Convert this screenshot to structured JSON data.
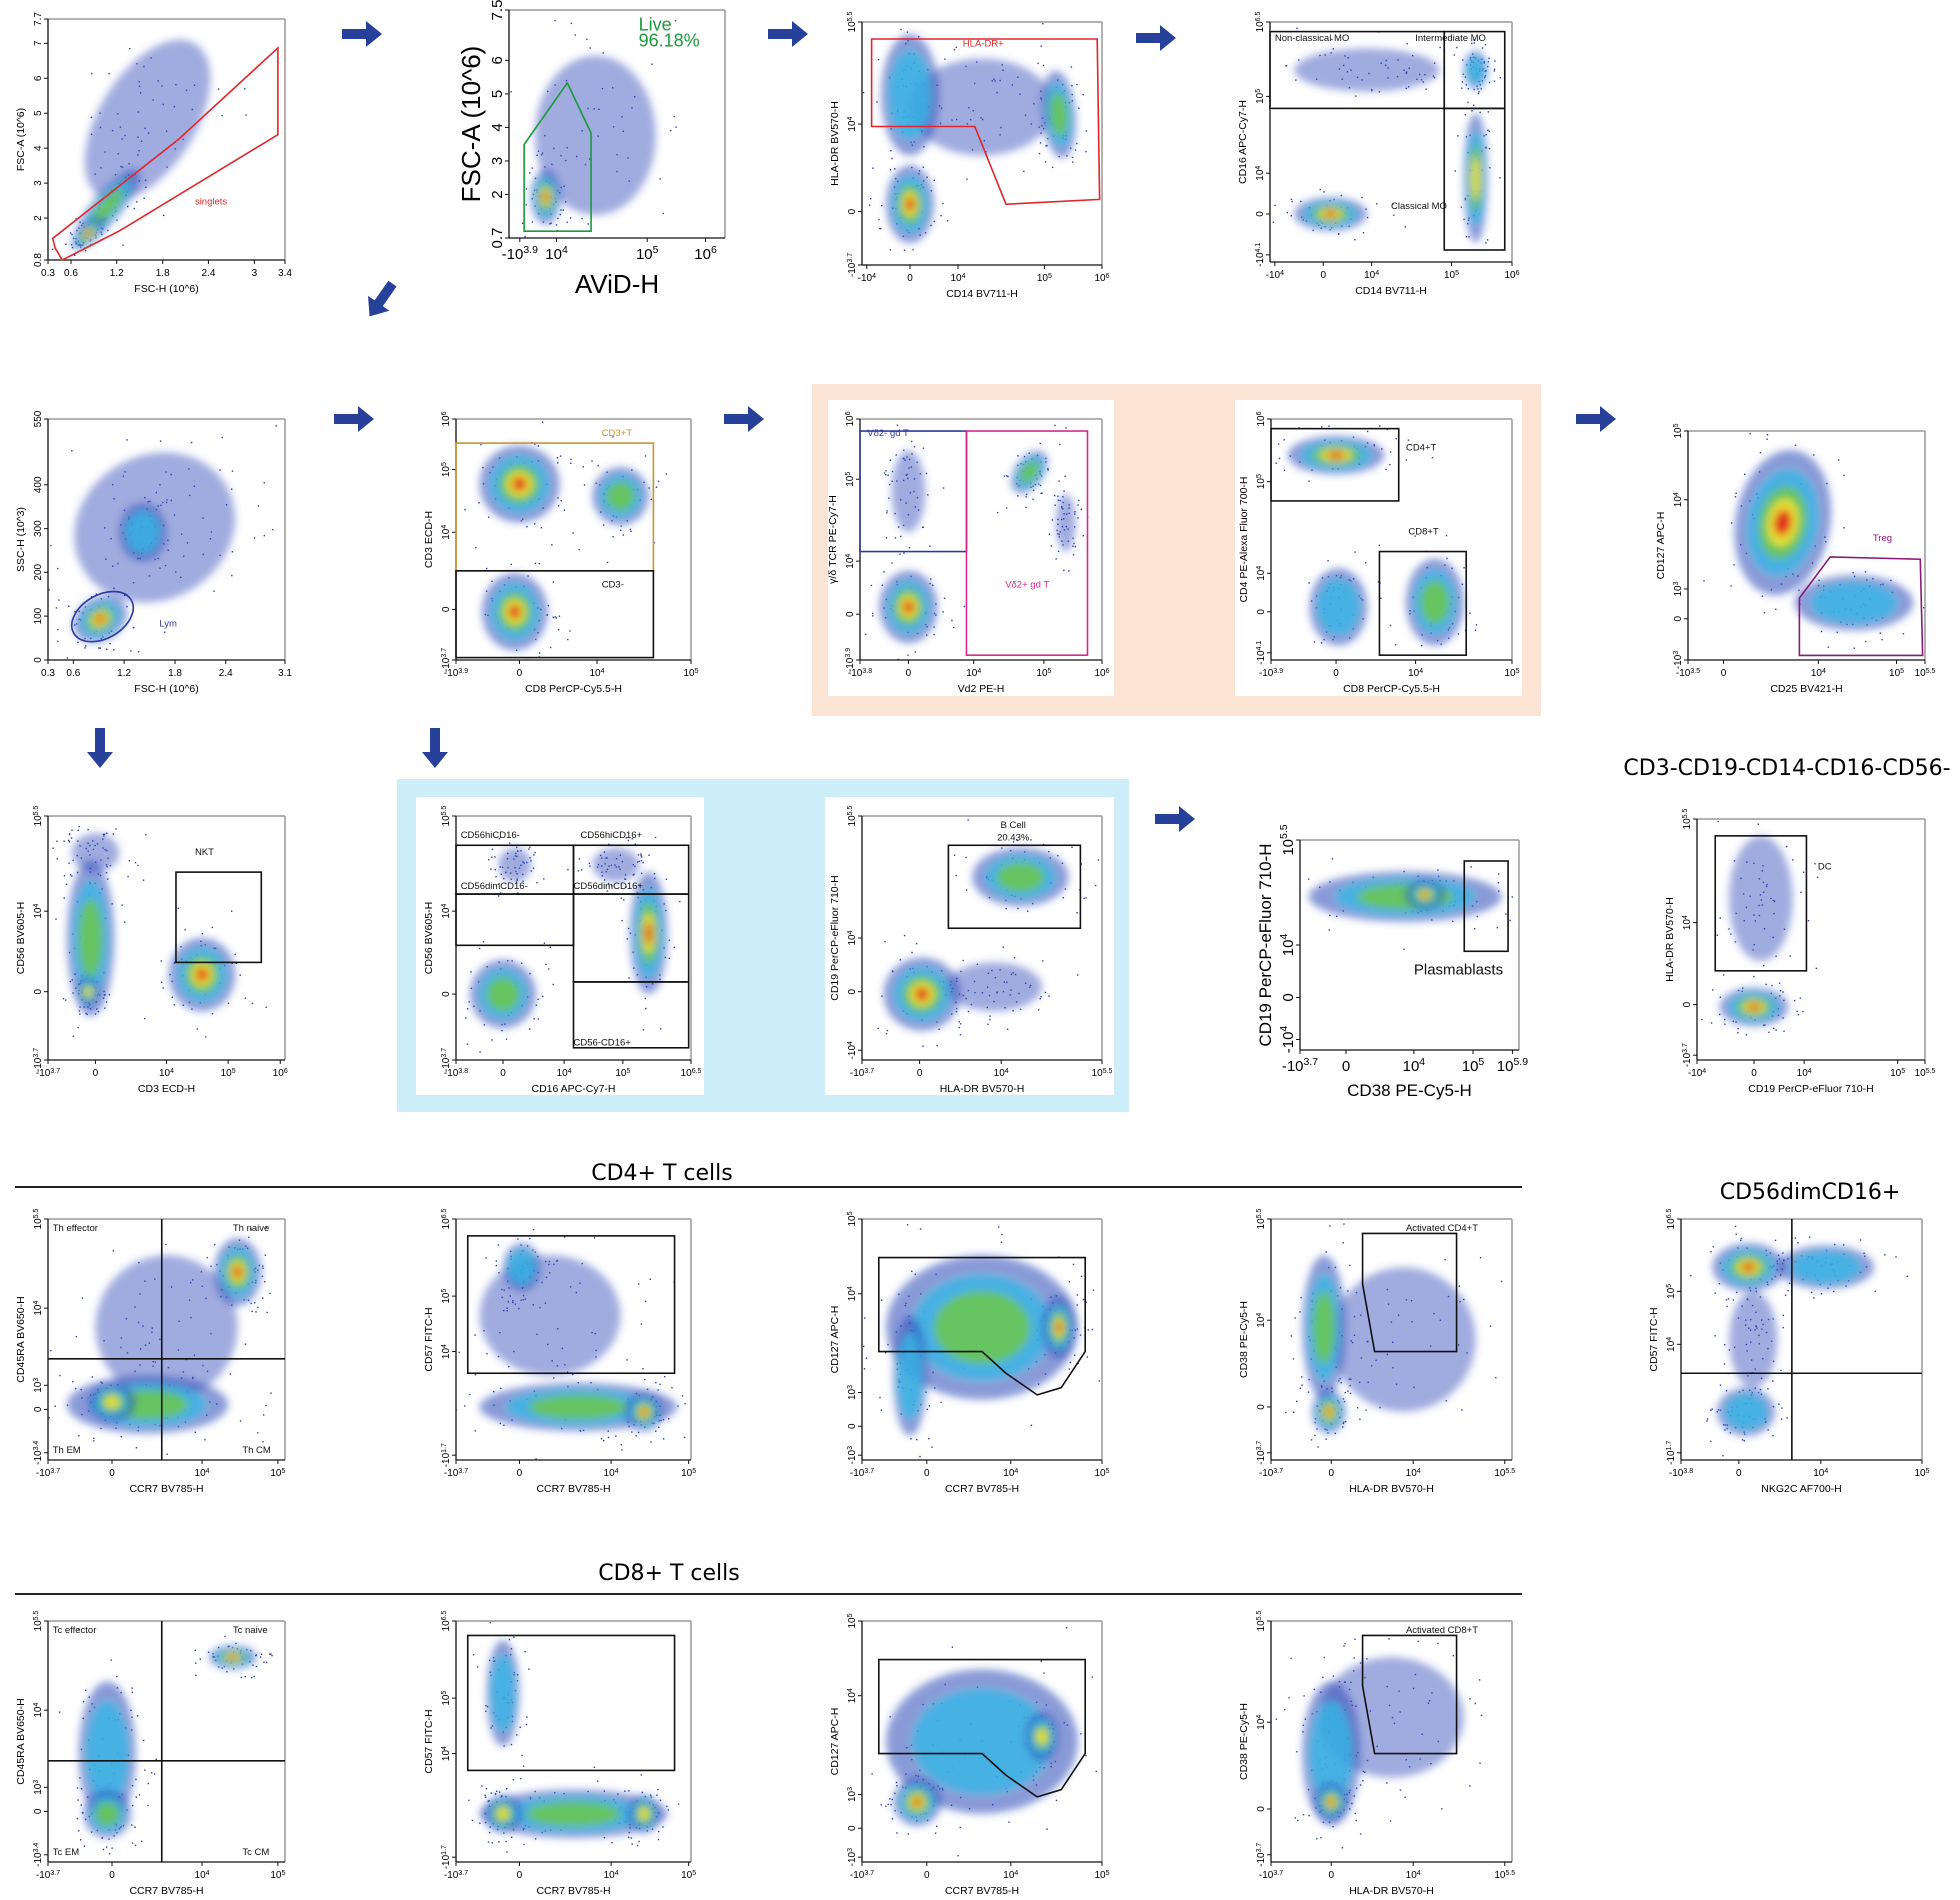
{
  "colors": {
    "arrow": "#27409a",
    "peach_panel": "#fbe4d3",
    "blue_panel": "#cdeef9",
    "gate_red": "#e0262a",
    "gate_green": "#1a9a3a",
    "gate_gold": "#c8962a",
    "gate_blue": "#2a3aa0",
    "gate_magenta": "#d62a8a",
    "gate_purple": "#8a1a7a",
    "gate_black": "#111111"
  },
  "sections": {
    "cd4_title": "CD4+ T cells",
    "cd8_title": "CD8+ T cells",
    "nk_title": "CD56dimCD16+",
    "dc_title": "CD3-CD19-CD14-CD16-CD56-"
  },
  "chart_data": [
    {
      "type": "scatter",
      "xlabel": "FSC-H (10^6)",
      "ylabel": "FSC-A (10^6)",
      "xticks": [
        "0.3",
        "0.6",
        "1.2",
        "1.8",
        "2.4",
        "3",
        "3.4"
      ],
      "yticks": [
        "0.8",
        "2",
        "3",
        "4",
        "5",
        "6",
        "7",
        "7.7"
      ],
      "gates": [
        {
          "label": "singlets",
          "color": "#e0262a"
        }
      ]
    },
    {
      "type": "scatter",
      "xlabel": "AViD-H",
      "ylabel": "FSC-A (10^6)",
      "xticks": [
        "-10^3.9",
        "10^4",
        "10^5",
        "10^6"
      ],
      "yticks": [
        "0.7",
        "2",
        "3",
        "4",
        "5",
        "6",
        "7.5"
      ],
      "gates": [
        {
          "label": "Live",
          "value": "96.18%",
          "color": "#1a9a3a"
        }
      ]
    },
    {
      "type": "scatter",
      "xlabel": "CD14 BV711-H",
      "ylabel": "HLA-DR BV570-H",
      "xticks": [
        "-10^4",
        "0",
        "10^4",
        "10^5",
        "10^6"
      ],
      "yticks": [
        "-10^3.7",
        "0",
        "10^4",
        "10^5.5"
      ],
      "gates": [
        {
          "label": "HLA-DR+",
          "color": "#e0262a"
        }
      ]
    },
    {
      "type": "scatter",
      "xlabel": "CD14 BV711-H",
      "ylabel": "CD16 APC-Cy7-H",
      "xticks": [
        "-10^4",
        "0",
        "10^4",
        "10^5",
        "10^6"
      ],
      "yticks": [
        "-10^4.1",
        "0",
        "10^4",
        "10^5",
        "10^6.5"
      ],
      "gates": [
        {
          "label": "Non-classical MO",
          "color": "#111111"
        },
        {
          "label": "Intermediate MO",
          "color": "#111111"
        },
        {
          "label": "Classical MO",
          "color": "#111111"
        }
      ]
    },
    {
      "type": "scatter",
      "xlabel": "FSC-H (10^6)",
      "ylabel": "SSC-H (10^3)",
      "xticks": [
        "0.3",
        "0.6",
        "1.2",
        "1.8",
        "2.4",
        "3.1"
      ],
      "yticks": [
        "0",
        "100",
        "200",
        "300",
        "400",
        "550"
      ],
      "gates": [
        {
          "label": "Lym",
          "color": "#2a3aa0"
        }
      ]
    },
    {
      "type": "scatter",
      "xlabel": "CD8 PerCP-Cy5.5-H",
      "ylabel": "CD3 ECD-H",
      "xticks": [
        "-10^3.9",
        "0",
        "10^4",
        "10^5"
      ],
      "yticks": [
        "-10^3.7",
        "0",
        "10^4",
        "10^5",
        "10^6"
      ],
      "gates": [
        {
          "label": "CD3+T",
          "color": "#c8962a"
        },
        {
          "label": "CD3-",
          "color": "#111111"
        }
      ]
    },
    {
      "type": "scatter",
      "xlabel": "Vd2 PE-H",
      "ylabel": "γ/δ TCR PE-Cy7-H",
      "xticks": [
        "-10^3.8",
        "0",
        "10^4",
        "10^5",
        "10^6"
      ],
      "yticks": [
        "-10^3.9",
        "0",
        "10^4",
        "10^5",
        "10^6"
      ],
      "gates": [
        {
          "label": "Vδ2- gd T",
          "color": "#2a3aa0"
        },
        {
          "label": "Vδ2+ gd T",
          "color": "#d62a8a"
        }
      ]
    },
    {
      "type": "scatter",
      "xlabel": "CD8 PerCP-Cy5.5-H",
      "ylabel": "CD4 PE-Alexa Fluor 700-H",
      "xticks": [
        "-10^3.9",
        "0",
        "10^4",
        "10^5"
      ],
      "yticks": [
        "-10^4.1",
        "0",
        "10^4",
        "10^5",
        "10^6"
      ],
      "gates": [
        {
          "label": "CD4+T",
          "color": "#111111"
        },
        {
          "label": "CD8+T",
          "color": "#111111"
        }
      ]
    },
    {
      "type": "scatter",
      "xlabel": "CD25 BV421-H",
      "ylabel": "CD127 APC-H",
      "xticks": [
        "-10^3.5",
        "0",
        "10^4",
        "10^5",
        "10^5.5"
      ],
      "yticks": [
        "-10^3",
        "0",
        "10^3",
        "10^4",
        "10^5"
      ],
      "gates": [
        {
          "label": "Treg",
          "color": "#8a1a7a"
        }
      ]
    },
    {
      "type": "scatter",
      "xlabel": "CD3 ECD-H",
      "ylabel": "CD56 BV605-H",
      "xticks": [
        "-10^3.7",
        "0",
        "10^4",
        "10^5",
        "10^6"
      ],
      "yticks": [
        "-10^3.7",
        "0",
        "10^4",
        "10^5.5"
      ],
      "gates": [
        {
          "label": "NKT",
          "color": "#111111"
        }
      ]
    },
    {
      "type": "scatter",
      "xlabel": "CD16 APC-Cy7-H",
      "ylabel": "CD56 BV605-H",
      "xticks": [
        "-10^3.8",
        "0",
        "10^4",
        "10^5",
        "10^6.5"
      ],
      "yticks": [
        "-10^3.7",
        "0",
        "10^4",
        "10^5.5"
      ],
      "gates": [
        {
          "label": "CD56hiCD16-",
          "color": "#111111"
        },
        {
          "label": "CD56hiCD16+",
          "color": "#111111"
        },
        {
          "label": "CD56dimCD16-",
          "color": "#111111"
        },
        {
          "label": "CD56dimCD16+",
          "color": "#111111"
        },
        {
          "label": "CD56-CD16+",
          "color": "#111111"
        }
      ]
    },
    {
      "type": "scatter",
      "xlabel": "HLA-DR BV570-H",
      "ylabel": "CD19 PerCP-eFluor 710-H",
      "xticks": [
        "-10^3.7",
        "0",
        "10^4",
        "10^5.5"
      ],
      "yticks": [
        "-10^4",
        "0",
        "10^4",
        "10^5.5"
      ],
      "gates": [
        {
          "label": "B Cell",
          "value": "20.43%",
          "color": "#111111"
        }
      ]
    },
    {
      "type": "scatter",
      "xlabel": "CD38 PE-Cy5-H",
      "ylabel": "CD19 PerCP-eFluor 710-H",
      "xticks": [
        "-10^3.7",
        "0",
        "10^4",
        "10^5",
        "10^5.9"
      ],
      "yticks": [
        "-10^4",
        "0",
        "10^4",
        "10^5.5"
      ],
      "gates": [
        {
          "label": "Plasmablasts",
          "color": "#111111"
        }
      ]
    },
    {
      "type": "scatter",
      "xlabel": "CD19 PerCP-eFluor 710-H",
      "ylabel": "HLA-DR BV570-H",
      "xticks": [
        "-10^4",
        "0",
        "10^4",
        "10^5",
        "10^5.5"
      ],
      "yticks": [
        "-10^3.7",
        "0",
        "10^4",
        "10^5.5"
      ],
      "gates": [
        {
          "label": "DC",
          "color": "#111111"
        }
      ]
    },
    {
      "type": "scatter",
      "xlabel": "CCR7 BV785-H",
      "ylabel": "CD45RA BV650-H",
      "xticks": [
        "-10^3.7",
        "0",
        "10^4",
        "10^5"
      ],
      "yticks": [
        "-10^3.4",
        "0",
        "10^3",
        "10^4",
        "10^5.5"
      ],
      "gates": [
        {
          "label": "Th effector",
          "color": "#111111"
        },
        {
          "label": "Th naive",
          "color": "#111111"
        },
        {
          "label": "Th EM",
          "color": "#111111"
        },
        {
          "label": "Th CM",
          "color": "#111111"
        }
      ]
    },
    {
      "type": "scatter",
      "xlabel": "CCR7 BV785-H",
      "ylabel": "CD57 FITC-H",
      "xticks": [
        "-10^3.7",
        "0",
        "10^4",
        "10^5"
      ],
      "yticks": [
        "-10^1.7",
        "10^4",
        "10^5",
        "10^6.5"
      ],
      "gates": [
        {
          "label": "",
          "color": "#111111"
        }
      ]
    },
    {
      "type": "scatter",
      "xlabel": "CCR7 BV785-H",
      "ylabel": "CD127 APC-H",
      "xticks": [
        "-10^3.7",
        "0",
        "10^4",
        "10^5"
      ],
      "yticks": [
        "-10^3",
        "0",
        "10^3",
        "10^4",
        "10^5"
      ],
      "gates": [
        {
          "label": "",
          "color": "#111111"
        }
      ]
    },
    {
      "type": "scatter",
      "xlabel": "HLA-DR BV570-H",
      "ylabel": "CD38 PE-Cy5-H",
      "xticks": [
        "-10^3.7",
        "0",
        "10^4",
        "10^5.5"
      ],
      "yticks": [
        "-10^3.7",
        "0",
        "10^4",
        "10^5.5"
      ],
      "gates": [
        {
          "label": "Activated CD4+T",
          "color": "#111111"
        }
      ]
    },
    {
      "type": "scatter",
      "xlabel": "NKG2C AF700-H",
      "ylabel": "CD57 FITC-H",
      "xticks": [
        "-10^3.8",
        "0",
        "10^4",
        "10^5"
      ],
      "yticks": [
        "-10^1.7",
        "10^4",
        "10^5",
        "10^6.5"
      ],
      "gates": [
        {
          "label": "",
          "color": "#111111"
        }
      ]
    },
    {
      "type": "scatter",
      "xlabel": "CCR7 BV785-H",
      "ylabel": "CD45RA BV650-H",
      "xticks": [
        "-10^3.7",
        "0",
        "10^4",
        "10^5"
      ],
      "yticks": [
        "-10^3.4",
        "0",
        "10^3",
        "10^4",
        "10^5.5"
      ],
      "gates": [
        {
          "label": "Tc effector",
          "color": "#111111"
        },
        {
          "label": "Tc naive",
          "color": "#111111"
        },
        {
          "label": "Tc EM",
          "color": "#111111"
        },
        {
          "label": "Tc CM",
          "color": "#111111"
        }
      ]
    },
    {
      "type": "scatter",
      "xlabel": "CCR7 BV785-H",
      "ylabel": "CD57 FITC-H",
      "xticks": [
        "-10^3.7",
        "0",
        "10^4",
        "10^5"
      ],
      "yticks": [
        "-10^1.7",
        "10^4",
        "10^5",
        "10^6.5"
      ],
      "gates": [
        {
          "label": "",
          "color": "#111111"
        }
      ]
    },
    {
      "type": "scatter",
      "xlabel": "CCR7 BV785-H",
      "ylabel": "CD127 APC-H",
      "xticks": [
        "-10^3.7",
        "0",
        "10^4",
        "10^5"
      ],
      "yticks": [
        "-10^3",
        "0",
        "10^3",
        "10^4",
        "10^5"
      ],
      "gates": [
        {
          "label": "",
          "color": "#111111"
        }
      ]
    },
    {
      "type": "scatter",
      "xlabel": "HLA-DR BV570-H",
      "ylabel": "CD38 PE-Cy5-H",
      "xticks": [
        "-10^3.7",
        "0",
        "10^4",
        "10^5.5"
      ],
      "yticks": [
        "-10^3.7",
        "0",
        "10^4",
        "10^5.5"
      ],
      "gates": [
        {
          "label": "Activated CD8+T",
          "color": "#111111"
        }
      ]
    }
  ]
}
